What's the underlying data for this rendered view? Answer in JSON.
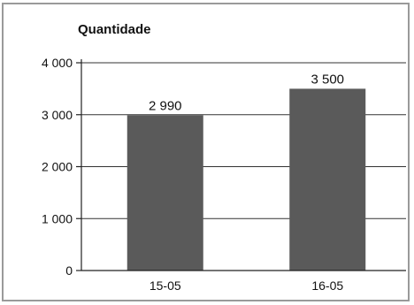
{
  "chart_data": {
    "type": "bar",
    "ylabel": "Quantidade",
    "xlabel": "",
    "categories": [
      "15-05",
      "16-05"
    ],
    "values": [
      2990,
      3500
    ],
    "value_labels": [
      "2 990",
      "3 500"
    ],
    "ylim": [
      0,
      4000
    ],
    "yticks": [
      0,
      1000,
      2000,
      3000,
      4000
    ],
    "ytick_labels": [
      "0",
      "1 000",
      "2 000",
      "3 000",
      "4 000"
    ],
    "grid": true,
    "legend": "none",
    "colors": {
      "bar": "#5a5a5a",
      "grid": "#333333",
      "axis": "#222222",
      "frame": "#9a9a9a"
    }
  }
}
